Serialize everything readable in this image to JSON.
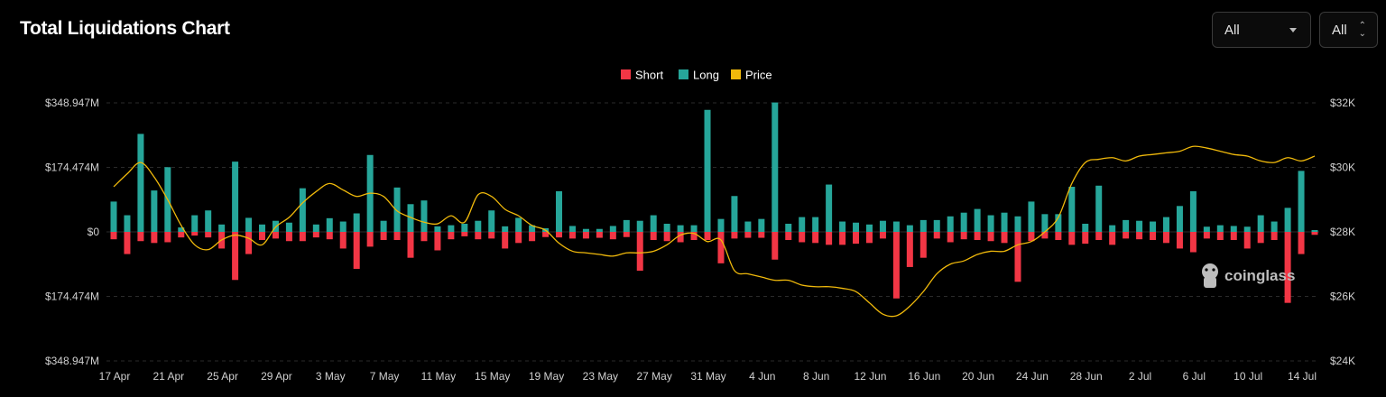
{
  "header": {
    "title": "Total Liquidations Chart",
    "select_exchange": "All",
    "select_range": "All"
  },
  "watermark": {
    "text": "coinglass",
    "icon": "coinglass-logo-icon"
  },
  "colors": {
    "short": "#f23645",
    "long": "#26a69a",
    "price": "#f0b90b",
    "grid": "#2a2a2a"
  },
  "chart_data": {
    "type": "bar",
    "title": "",
    "legend": [
      "Short",
      "Long",
      "Price"
    ],
    "legend_position": "top-center",
    "grid": true,
    "y_left_ticks": [
      "$348.947M",
      "$174.474M",
      "$0",
      "$174.474M",
      "$348.947M"
    ],
    "y_left_range": [
      -348.947,
      348.947
    ],
    "y_right_ticks": [
      "$32K",
      "$30K",
      "$28K",
      "$26K",
      "$24K"
    ],
    "y_right_range": [
      24000,
      32000
    ],
    "x_tick_labels": [
      "17 Apr",
      "21 Apr",
      "25 Apr",
      "29 Apr",
      "3 May",
      "7 May",
      "11 May",
      "15 May",
      "19 May",
      "23 May",
      "27 May",
      "31 May",
      "4 Jun",
      "8 Jun",
      "12 Jun",
      "16 Jun",
      "20 Jun",
      "24 Jun",
      "28 Jun",
      "2 Jul",
      "6 Jul",
      "10 Jul",
      "14 Jul"
    ],
    "series": [
      {
        "name": "Long",
        "unit": "M USD",
        "values": [
          82,
          45,
          265,
          112,
          175,
          12,
          45,
          58,
          20,
          190,
          38,
          20,
          30,
          25,
          118,
          20,
          37,
          28,
          50,
          208,
          30,
          120,
          75,
          85,
          15,
          18,
          22,
          30,
          58,
          15,
          38,
          18,
          10,
          110,
          16,
          8,
          8,
          16,
          32,
          30,
          45,
          22,
          18,
          18,
          330,
          35,
          97,
          28,
          35,
          350,
          22,
          40,
          40,
          128,
          28,
          25,
          20,
          30,
          28,
          18,
          32,
          32,
          42,
          52,
          62,
          45,
          52,
          42,
          82,
          48,
          48,
          122,
          22,
          125,
          18,
          32,
          30,
          28,
          40,
          70,
          110,
          14,
          18,
          16,
          14,
          45,
          28,
          65,
          165,
          5
        ]
      },
      {
        "name": "Short",
        "unit": "M USD",
        "values": [
          20,
          60,
          25,
          30,
          28,
          15,
          10,
          15,
          45,
          130,
          60,
          22,
          18,
          25,
          25,
          15,
          20,
          45,
          100,
          40,
          22,
          22,
          70,
          25,
          50,
          20,
          12,
          20,
          18,
          45,
          30,
          25,
          14,
          15,
          18,
          18,
          16,
          20,
          14,
          105,
          22,
          25,
          28,
          22,
          22,
          85,
          18,
          16,
          16,
          75,
          22,
          28,
          30,
          35,
          35,
          32,
          30,
          18,
          180,
          95,
          70,
          18,
          28,
          20,
          22,
          25,
          30,
          135,
          25,
          18,
          22,
          35,
          32,
          22,
          35,
          18,
          20,
          22,
          30,
          45,
          55,
          18,
          22,
          22,
          45,
          30,
          22,
          192,
          60,
          8
        ]
      },
      {
        "name": "Price",
        "unit": "USD",
        "values": [
          29400,
          29800,
          30150,
          29700,
          29000,
          28200,
          27600,
          27450,
          27750,
          27900,
          27800,
          27600,
          28150,
          28450,
          28900,
          29250,
          29500,
          29300,
          29100,
          29200,
          29100,
          28650,
          28450,
          28300,
          28250,
          28500,
          28300,
          29150,
          29100,
          28700,
          28500,
          28200,
          28050,
          27650,
          27400,
          27350,
          27300,
          27250,
          27350,
          27350,
          27400,
          27600,
          27900,
          27950,
          27700,
          27750,
          26800,
          26700,
          26600,
          26500,
          26500,
          26350,
          26300,
          26300,
          26250,
          26150,
          25800,
          25450,
          25400,
          25700,
          26150,
          26700,
          27000,
          27100,
          27300,
          27400,
          27400,
          27600,
          27700,
          28000,
          28450,
          29500,
          30150,
          30250,
          30300,
          30200,
          30350,
          30400,
          30450,
          30500,
          30650,
          30600,
          30500,
          30400,
          30350,
          30200,
          30150,
          30300,
          30200,
          30350
        ]
      }
    ]
  }
}
